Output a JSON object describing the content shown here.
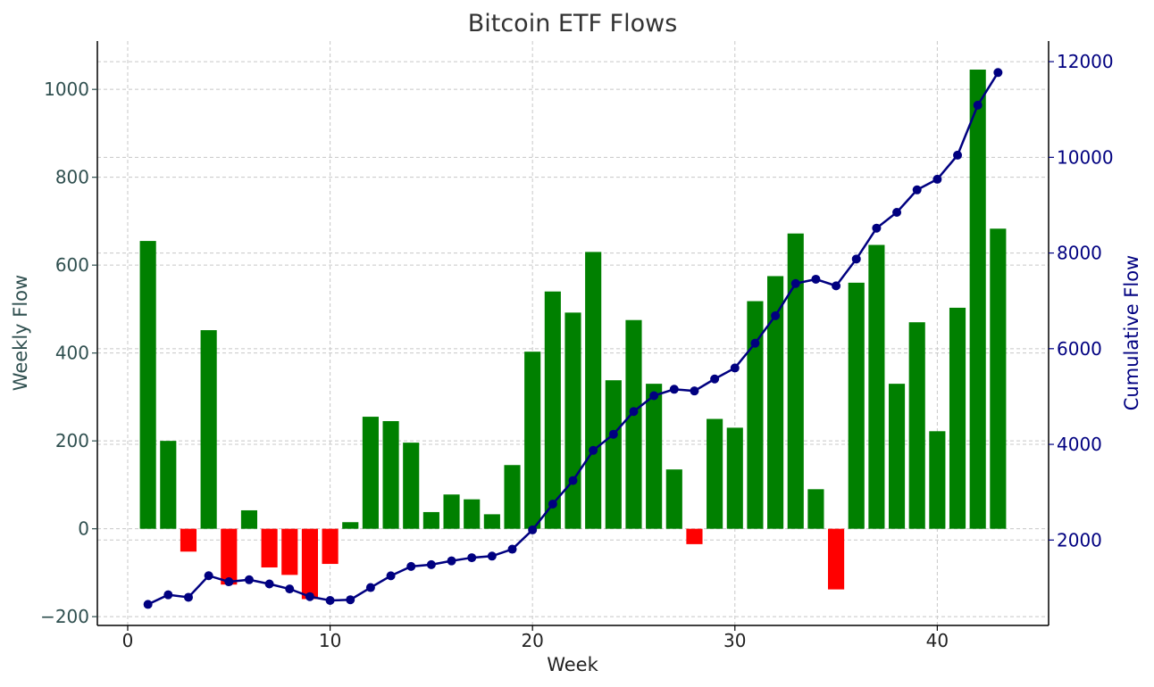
{
  "chart_data": {
    "type": "bar+line",
    "title": "Bitcoin ETF Flows",
    "xlabel": "Week",
    "ylabel_left": "Weekly Flow",
    "ylabel_right": "Cumulative Flow",
    "xlim": [
      -1.5,
      45.5
    ],
    "ylim_left": [
      -220,
      1110
    ],
    "ylim_right": [
      215,
      12431
    ],
    "x_ticks": [
      0,
      10,
      20,
      30,
      40
    ],
    "y_left_ticks": [
      -200,
      0,
      200,
      400,
      600,
      800,
      1000
    ],
    "y_right_ticks": [
      2000,
      4000,
      6000,
      8000,
      10000,
      12000
    ],
    "grid": true,
    "colors": {
      "positive_bar": "#008000",
      "negative_bar": "#ff0000",
      "cumulative_line": "#000080",
      "left_axis_text": "#2f4f4f",
      "right_axis_text": "#000080"
    },
    "weeks": [
      1,
      2,
      3,
      4,
      5,
      6,
      7,
      8,
      9,
      10,
      11,
      12,
      13,
      14,
      15,
      16,
      17,
      18,
      19,
      20,
      21,
      22,
      23,
      24,
      25,
      26,
      27,
      28,
      29,
      30,
      31,
      32,
      33,
      34,
      35,
      36,
      37,
      38,
      39,
      40,
      41,
      42,
      43
    ],
    "series": [
      {
        "name": "Weekly Flow",
        "type": "bar",
        "axis": "left",
        "values": [
          655,
          200,
          -52,
          452,
          -127,
          42,
          -88,
          -105,
          -160,
          -80,
          15,
          255,
          245,
          196,
          38,
          78,
          67,
          33,
          145,
          403,
          540,
          492,
          630,
          338,
          475,
          330,
          135,
          -35,
          250,
          230,
          518,
          575,
          672,
          90,
          -138,
          560,
          646,
          330,
          470,
          222,
          503,
          1045,
          683
        ]
      },
      {
        "name": "Cumulative Flow",
        "type": "line",
        "axis": "right",
        "values": [
          655,
          855,
          803,
          1255,
          1128,
          1170,
          1082,
          977,
          817,
          737,
          752,
          1007,
          1252,
          1448,
          1486,
          1564,
          1631,
          1664,
          1809,
          2212,
          2752,
          3244,
          3874,
          4212,
          4687,
          5017,
          5152,
          5117,
          5367,
          5597,
          6115,
          6690,
          7362,
          7452,
          7314,
          7874,
          8520,
          8850,
          9320,
          9542,
          10045,
          11090,
          11773
        ]
      }
    ]
  }
}
